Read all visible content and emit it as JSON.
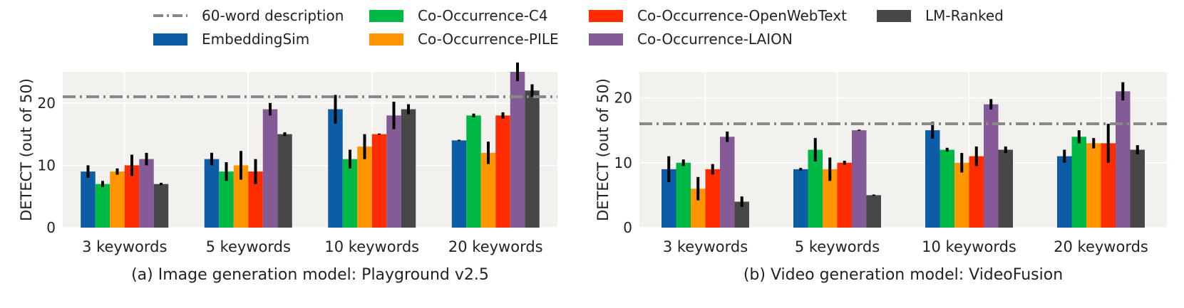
{
  "legend": [
    {
      "label": "60-word description",
      "kind": "line",
      "color": "#888888"
    },
    {
      "label": "EmbeddingSim",
      "kind": "bar",
      "color": "#0c5da5"
    },
    {
      "label": "Co-Occurrence-C4",
      "kind": "bar",
      "color": "#00b945"
    },
    {
      "label": "Co-Occurrence-PILE",
      "kind": "bar",
      "color": "#ff9500"
    },
    {
      "label": "Co-Occurrence-OpenWebText",
      "kind": "bar",
      "color": "#ff2c00"
    },
    {
      "label": "Co-Occurrence-LAION",
      "kind": "bar",
      "color": "#845b97"
    },
    {
      "label": "LM-Ranked",
      "kind": "bar",
      "color": "#474747"
    }
  ],
  "chart_data": [
    {
      "type": "bar",
      "caption": "(a) Image generation model: Playground v2.5",
      "ylabel": "DETECT (out of 50)",
      "ylim": [
        0,
        25
      ],
      "yticks": [
        0,
        10,
        20
      ],
      "categories": [
        "3 keywords",
        "5 keywords",
        "10 keywords",
        "20 keywords"
      ],
      "baseline": {
        "name": "60-word description",
        "value": 21
      },
      "series": [
        {
          "name": "EmbeddingSim",
          "values": [
            9,
            11,
            19,
            14
          ],
          "errors": [
            1,
            1,
            2.3,
            0.1
          ]
        },
        {
          "name": "Co-Occurrence-C4",
          "values": [
            7,
            9,
            11,
            18
          ],
          "errors": [
            0.5,
            1.5,
            1.5,
            0.3
          ]
        },
        {
          "name": "Co-Occurrence-PILE",
          "values": [
            9,
            10,
            13,
            12
          ],
          "errors": [
            0.5,
            2.3,
            2,
            1.8
          ]
        },
        {
          "name": "Co-Occurrence-OpenWebText",
          "values": [
            10,
            9,
            15,
            18
          ],
          "errors": [
            1.7,
            2,
            0.1,
            0.5
          ]
        },
        {
          "name": "Co-Occurrence-LAION",
          "values": [
            11,
            19,
            18,
            25
          ],
          "errors": [
            1,
            1,
            2.2,
            1.5
          ]
        },
        {
          "name": "LM-Ranked",
          "values": [
            7,
            15,
            19,
            22
          ],
          "errors": [
            0.2,
            0.3,
            0.8,
            1
          ]
        }
      ]
    },
    {
      "type": "bar",
      "caption": "(b) Video generation model: VideoFusion",
      "ylabel": "DETECT (out of 50)",
      "ylim": [
        0,
        24
      ],
      "yticks": [
        0,
        10,
        20
      ],
      "categories": [
        "3 keywords",
        "5 keywords",
        "10 keywords",
        "20 keywords"
      ],
      "baseline": {
        "name": "60-word description",
        "value": 16
      },
      "series": [
        {
          "name": "EmbeddingSim",
          "values": [
            9,
            9,
            15,
            11
          ],
          "errors": [
            2,
            0.2,
            1.3,
            1
          ]
        },
        {
          "name": "Co-Occurrence-C4",
          "values": [
            10,
            12,
            12,
            14
          ],
          "errors": [
            0.5,
            1.8,
            0.3,
            1
          ]
        },
        {
          "name": "Co-Occurrence-PILE",
          "values": [
            6,
            9,
            10,
            13
          ],
          "errors": [
            1.8,
            1.8,
            1.5,
            0.8
          ]
        },
        {
          "name": "Co-Occurrence-OpenWebText",
          "values": [
            9,
            10,
            11,
            13
          ],
          "errors": [
            0.8,
            0.3,
            1.5,
            3
          ]
        },
        {
          "name": "Co-Occurrence-LAION",
          "values": [
            14,
            15,
            19,
            21
          ],
          "errors": [
            0.8,
            0.1,
            0.8,
            1.4
          ]
        },
        {
          "name": "LM-Ranked",
          "values": [
            4,
            5,
            12,
            12
          ],
          "errors": [
            0.8,
            0.1,
            0.5,
            0.7
          ]
        }
      ]
    }
  ]
}
